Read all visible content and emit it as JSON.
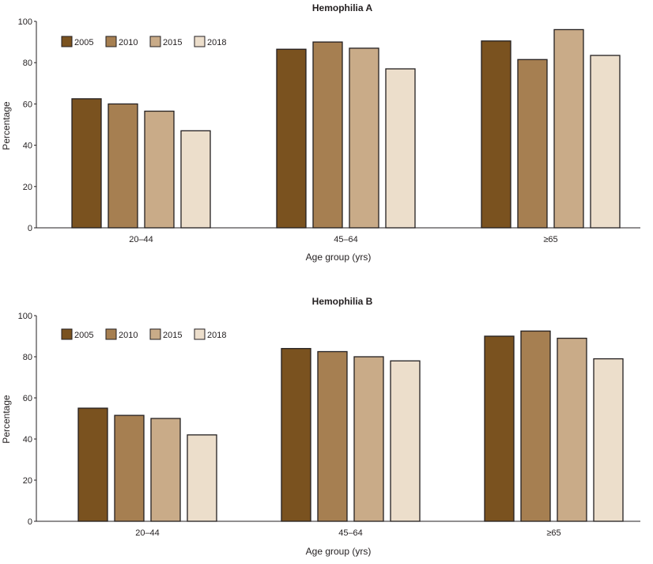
{
  "chart_data": [
    {
      "type": "bar",
      "title": "Hemophilia A",
      "xlabel": "Age group (yrs)",
      "ylabel": "Percentage",
      "ylim": [
        0,
        100
      ],
      "yticks": [
        0,
        20,
        40,
        60,
        80,
        100
      ],
      "categories": [
        "20–44",
        "45–64",
        "≥65"
      ],
      "legend_position": "top-left",
      "series": [
        {
          "name": "2005",
          "color": "#7a521f",
          "values": [
            62.5,
            86.5,
            90.5
          ]
        },
        {
          "name": "2010",
          "color": "#a67f51",
          "values": [
            60,
            90,
            81.5
          ]
        },
        {
          "name": "2015",
          "color": "#c9ab88",
          "values": [
            56.5,
            87,
            96
          ]
        },
        {
          "name": "2018",
          "color": "#ecdecb",
          "values": [
            47,
            77,
            83.5
          ]
        }
      ]
    },
    {
      "type": "bar",
      "title": "Hemophilia B",
      "xlabel": "Age group (yrs)",
      "ylabel": "Percentage",
      "ylim": [
        0,
        100
      ],
      "yticks": [
        0,
        20,
        40,
        60,
        80,
        100
      ],
      "categories": [
        "20–44",
        "45–64",
        "≥65"
      ],
      "legend_position": "top-left",
      "series": [
        {
          "name": "2005",
          "color": "#7a521f",
          "values": [
            55,
            84,
            90
          ]
        },
        {
          "name": "2010",
          "color": "#a67f51",
          "values": [
            51.5,
            82.5,
            92.5
          ]
        },
        {
          "name": "2015",
          "color": "#c9ab88",
          "values": [
            50,
            80,
            89
          ]
        },
        {
          "name": "2018",
          "color": "#ecdecb",
          "values": [
            42,
            78,
            79
          ]
        }
      ]
    }
  ]
}
